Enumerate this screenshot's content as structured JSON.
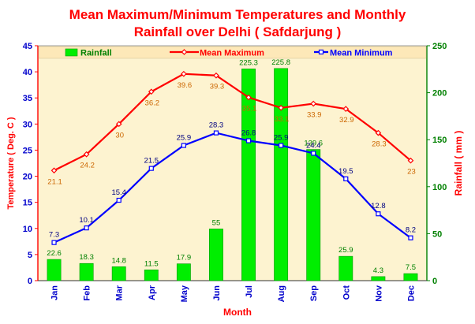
{
  "chart_data": {
    "type": "bar",
    "title_line1": "Mean Maximum/Minimum Temperatures and Monthly",
    "title_line2": "Rainfall over Delhi ( Safdarjung )",
    "xlabel": "Month",
    "ylabel_left": "Temperature ( Deg. C )",
    "ylabel_right": "Rainfall ( mm )",
    "categories": [
      "Jan",
      "Feb",
      "Mar",
      "Apr",
      "May",
      "Jun",
      "Jul",
      "Aug",
      "Sep",
      "Oct",
      "Nov",
      "Dec"
    ],
    "ylim_left": [
      0,
      45
    ],
    "ylim_right": [
      0,
      250
    ],
    "yticks_left": [
      "0",
      "5",
      "10",
      "15",
      "20",
      "25",
      "30",
      "35",
      "40",
      "45"
    ],
    "yticks_right": [
      "0",
      "50",
      "100",
      "150",
      "200",
      "250"
    ],
    "grid": false,
    "legend_position": "top",
    "series": [
      {
        "name": "Rainfall",
        "kind": "bar",
        "axis": "right",
        "color": "#00ee00",
        "label_color": "#008000",
        "values": [
          22.6,
          18.3,
          14.8,
          11.5,
          17.9,
          55,
          225.3,
          225.8,
          139.6,
          25.9,
          4.3,
          7.5
        ],
        "labels": [
          "22.6",
          "18.3",
          "14.8",
          "11.5",
          "17.9",
          "55",
          "225.3",
          "225.8",
          "139.6",
          "25.9",
          "4.3",
          "7.5"
        ]
      },
      {
        "name": "Mean Maximum",
        "kind": "line",
        "axis": "left",
        "color": "#ff0000",
        "label_color": "#cc6600",
        "values": [
          21.1,
          24.2,
          30,
          36.2,
          39.6,
          39.3,
          35.1,
          33.1,
          33.9,
          32.9,
          28.3,
          23
        ],
        "labels": [
          "21.1",
          "24.2",
          "30",
          "36.2",
          "39.6",
          "39.3",
          "35.1",
          "33.1",
          "33.9",
          "32.9",
          "28.3",
          "23"
        ]
      },
      {
        "name": "Mean Minimum",
        "kind": "line",
        "axis": "left",
        "color": "#0000ff",
        "label_color": "#000080",
        "values": [
          7.3,
          10.1,
          15.4,
          21.5,
          25.9,
          28.3,
          26.8,
          25.9,
          24.4,
          19.5,
          12.8,
          8.2
        ],
        "labels": [
          "7.3",
          "10.1",
          "15.4",
          "21.5",
          "25.9",
          "28.3",
          "26.8",
          "25.9",
          "24.4",
          "19.5",
          "12.8",
          "8.2"
        ]
      }
    ],
    "colors": {
      "plot_bg": "#fdf3d0",
      "axis_left": "#ff0000",
      "axis_right": "#008000",
      "tick_left": "#0000cc",
      "tick_right": "#008000",
      "month": "#0000cc",
      "xlabel": "#ff0000",
      "ylabel_left": "#ff0000",
      "ylabel_right": "#ff0000"
    }
  }
}
